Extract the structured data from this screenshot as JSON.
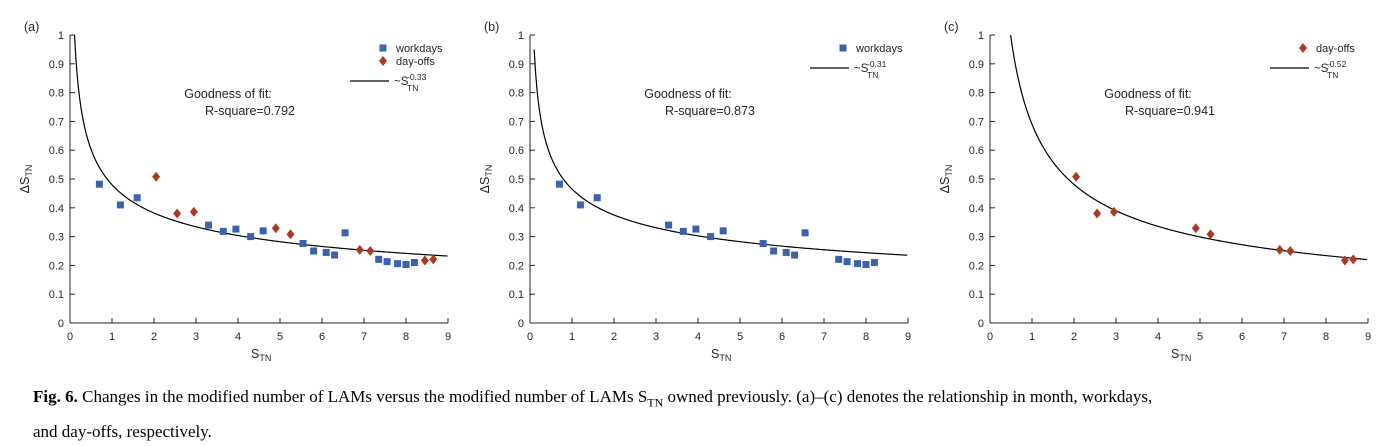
{
  "page": {
    "background": "#ffffff"
  },
  "colors": {
    "workdays": "#3B62AA",
    "dayoffs": "#A93B23",
    "curve": "#000000",
    "axis": "#262626"
  },
  "caption": {
    "fig_label": "Fig. 6.",
    "line1_before_sub": " Changes in the modified number of LAMs versus the modified number of LAMs S",
    "line1_sub": "TN",
    "line1_after_sub": " owned previously. (a)–(c) denotes the relationship in month, workdays,",
    "line2": "and day-offs, respectively."
  },
  "chart_data": [
    {
      "type": "scatter",
      "panel_label": "(a)",
      "xlabel": "S",
      "xlabel_sub": "TN",
      "ylabel": "ΔS",
      "ylabel_sub": "TN",
      "xlim": [
        0,
        9
      ],
      "ylim": [
        0,
        1
      ],
      "xticks": [
        "0",
        "1",
        "2",
        "3",
        "4",
        "5",
        "6",
        "7",
        "8",
        "9"
      ],
      "yticks": [
        "0",
        "0.1",
        "0.2",
        "0.3",
        "0.4",
        "0.5",
        "0.6",
        "0.7",
        "0.8",
        "0.9",
        "1"
      ],
      "annotation": {
        "line1": "Goodness of fit:",
        "line2": "R-square=0.792"
      },
      "series": [
        {
          "name": "workdays",
          "marker": "square",
          "color_key": "workdays",
          "points": [
            [
              0.7,
              0.482
            ],
            [
              1.2,
              0.41
            ],
            [
              1.6,
              0.435
            ],
            [
              3.3,
              0.34
            ],
            [
              3.65,
              0.318
            ],
            [
              3.95,
              0.326
            ],
            [
              4.3,
              0.3
            ],
            [
              4.6,
              0.32
            ],
            [
              5.55,
              0.276
            ],
            [
              5.8,
              0.25
            ],
            [
              6.1,
              0.245
            ],
            [
              6.3,
              0.236
            ],
            [
              6.55,
              0.313
            ],
            [
              7.35,
              0.221
            ],
            [
              7.55,
              0.213
            ],
            [
              7.8,
              0.206
            ],
            [
              8.0,
              0.203
            ],
            [
              8.2,
              0.21
            ]
          ]
        },
        {
          "name": "day-offs",
          "marker": "diamond",
          "color_key": "dayoffs",
          "points": [
            [
              2.05,
              0.508
            ],
            [
              2.55,
              0.38
            ],
            [
              2.95,
              0.386
            ],
            [
              4.9,
              0.329
            ],
            [
              5.25,
              0.308
            ],
            [
              6.9,
              0.254
            ],
            [
              7.15,
              0.25
            ],
            [
              8.45,
              0.217
            ],
            [
              8.65,
              0.221
            ]
          ]
        }
      ],
      "fit": {
        "legend_prefix": "~S",
        "legend_sub": "TN",
        "legend_sup": "-0.33",
        "coefficient": 0.48,
        "exponent": -0.33,
        "x_start": 0.108,
        "x_end": 9
      }
    },
    {
      "type": "scatter",
      "panel_label": "(b)",
      "xlabel": "S",
      "xlabel_sub": "TN",
      "ylabel": "ΔS",
      "ylabel_sub": "TN",
      "xlim": [
        0,
        9
      ],
      "ylim": [
        0,
        1
      ],
      "xticks": [
        "0",
        "1",
        "2",
        "3",
        "4",
        "5",
        "6",
        "7",
        "8",
        "9"
      ],
      "yticks": [
        "0",
        "0.1",
        "0.2",
        "0.3",
        "0.4",
        "0.5",
        "0.6",
        "0.7",
        "0.8",
        "0.9",
        "1"
      ],
      "annotation": {
        "line1": "Goodness of fit:",
        "line2": "R-square=0.873"
      },
      "series": [
        {
          "name": "workdays",
          "marker": "square",
          "color_key": "workdays",
          "points": [
            [
              0.7,
              0.482
            ],
            [
              1.2,
              0.41
            ],
            [
              1.6,
              0.435
            ],
            [
              3.3,
              0.34
            ],
            [
              3.65,
              0.318
            ],
            [
              3.95,
              0.326
            ],
            [
              4.3,
              0.3
            ],
            [
              4.6,
              0.32
            ],
            [
              5.55,
              0.276
            ],
            [
              5.8,
              0.25
            ],
            [
              6.1,
              0.245
            ],
            [
              6.3,
              0.236
            ],
            [
              6.55,
              0.313
            ],
            [
              7.35,
              0.221
            ],
            [
              7.55,
              0.213
            ],
            [
              7.8,
              0.206
            ],
            [
              8.0,
              0.203
            ],
            [
              8.2,
              0.21
            ]
          ]
        }
      ],
      "fit": {
        "legend_prefix": "~S",
        "legend_sub": "TN",
        "legend_sup": "-0.31",
        "coefficient": 0.465,
        "exponent": -0.31,
        "x_start": 0.1,
        "x_end": 9
      }
    },
    {
      "type": "scatter",
      "panel_label": "(c)",
      "xlabel": "S",
      "xlabel_sub": "TN",
      "ylabel": "ΔS",
      "ylabel_sub": "TN",
      "xlim": [
        0,
        9
      ],
      "ylim": [
        0,
        1
      ],
      "xticks": [
        "0",
        "1",
        "2",
        "3",
        "4",
        "5",
        "6",
        "7",
        "8",
        "9"
      ],
      "yticks": [
        "0",
        "0.1",
        "0.2",
        "0.3",
        "0.4",
        "0.5",
        "0.6",
        "0.7",
        "0.8",
        "0.9",
        "1"
      ],
      "annotation": {
        "line1": "Goodness of fit:",
        "line2": "R-square=0.941"
      },
      "series": [
        {
          "name": "day-offs",
          "marker": "diamond",
          "color_key": "dayoffs",
          "points": [
            [
              2.05,
              0.508
            ],
            [
              2.55,
              0.38
            ],
            [
              2.95,
              0.386
            ],
            [
              4.9,
              0.329
            ],
            [
              5.25,
              0.308
            ],
            [
              6.9,
              0.254
            ],
            [
              7.15,
              0.25
            ],
            [
              8.45,
              0.217
            ],
            [
              8.65,
              0.221
            ]
          ]
        }
      ],
      "fit": {
        "legend_prefix": "~S",
        "legend_sub": "TN",
        "legend_sup": "-0.52",
        "coefficient": 0.69,
        "exponent": -0.52,
        "x_start": 0.49,
        "x_end": 9
      }
    }
  ]
}
